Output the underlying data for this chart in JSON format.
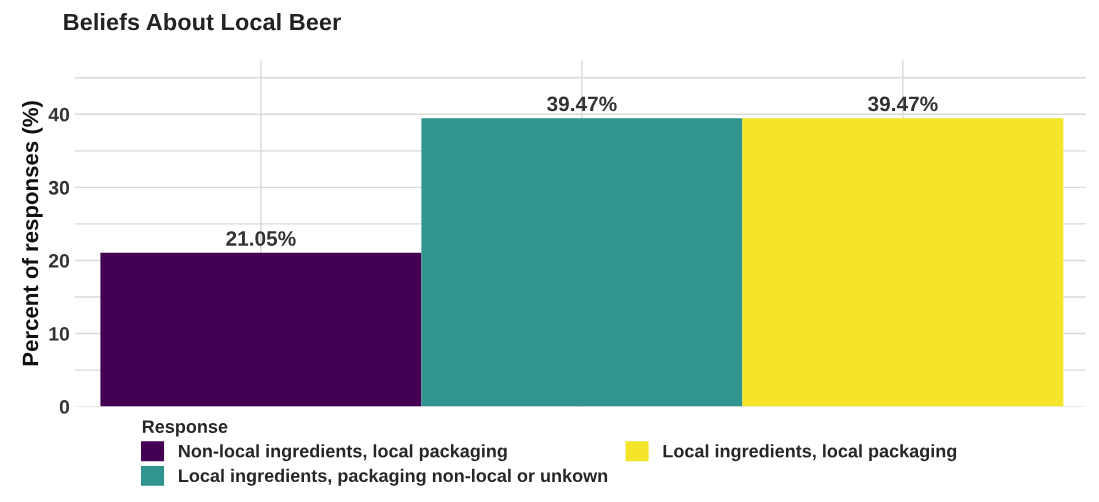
{
  "chart_data": {
    "type": "bar",
    "title": "Beliefs About Local Beer",
    "ylabel": "Percent of responses (%)",
    "legend_title": "Response",
    "categories": [
      null,
      null,
      null
    ],
    "series": [
      {
        "name": "Non-local ingredients, local packaging",
        "color": "#440154",
        "values": [
          21.05,
          null,
          null
        ]
      },
      {
        "name": "Local ingredients, packaging non-local or unkown",
        "color": "#31948f",
        "values": [
          null,
          39.47,
          null
        ]
      },
      {
        "name": "Local ingredients, local packaging",
        "color": "#f4e52a",
        "values": [
          null,
          null,
          39.47
        ]
      }
    ],
    "value_labels": [
      "21.05%",
      "39.47%",
      "39.47%"
    ],
    "ylim": [
      0,
      47.4
    ],
    "yticks": [
      0,
      {
        "value": 5,
        "label": null
      },
      10,
      {
        "value": 15,
        "label": null
      },
      20,
      {
        "value": 25,
        "label": null
      },
      30,
      {
        "value": 35,
        "label": null
      },
      40,
      {
        "value": 45,
        "label": null
      }
    ],
    "grid": true,
    "legend": "bottom"
  }
}
